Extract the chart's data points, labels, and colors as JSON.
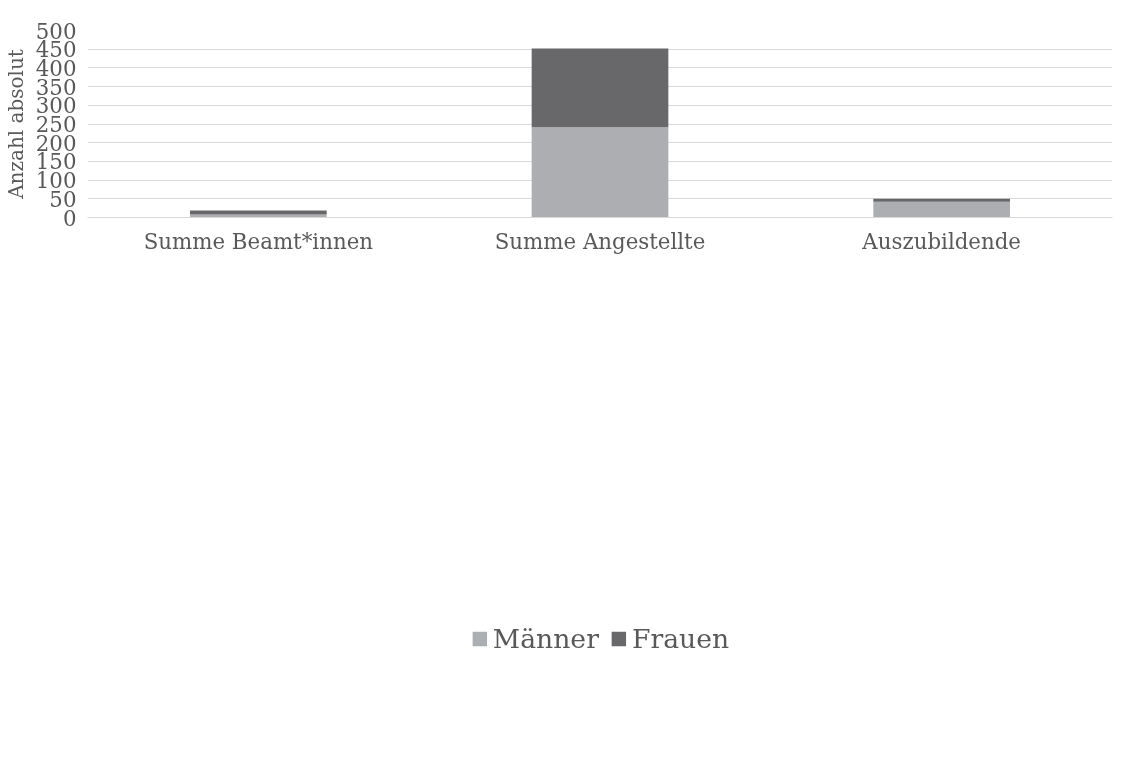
{
  "chart_data": {
    "type": "bar",
    "stacked": true,
    "ylabel": "Anzahl absolut",
    "categories": [
      "Summe Beamt*innen",
      "Summe Angestellte",
      "Auszubildende"
    ],
    "series": [
      {
        "name": "Männer",
        "color": "#adaeb1",
        "values": [
          8,
          241,
          42
        ]
      },
      {
        "name": "Frauen",
        "color": "#68686a",
        "values": [
          11,
          211,
          8
        ]
      }
    ],
    "ylim": [
      0,
      500
    ],
    "yticks": [
      0,
      50,
      100,
      150,
      200,
      250,
      300,
      350,
      400,
      450,
      500
    ],
    "grid": "y",
    "legend": "bottom"
  }
}
